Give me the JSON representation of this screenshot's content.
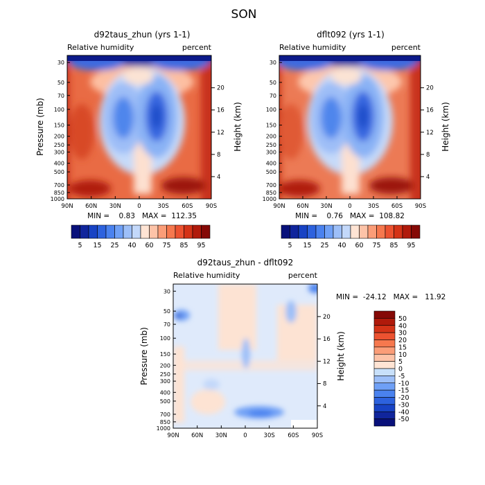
{
  "figure": {
    "title": "SON"
  },
  "chart_data": [
    {
      "type": "heatmap",
      "title": "d92taus_zhun (yrs 1-1)",
      "left_label": "Relative humidity",
      "right_label": "percent",
      "ylabel": "Pressure (mb)",
      "y2label": "Height (km)",
      "x_ticks": [
        "90N",
        "60N",
        "30N",
        "0",
        "30S",
        "60S",
        "90S"
      ],
      "y_ticks": [
        "30",
        "50",
        "70",
        "100",
        "150",
        "200",
        "250",
        "300",
        "400",
        "500",
        "700",
        "850",
        "1000"
      ],
      "y2_ticks": [
        "20",
        "16",
        "12",
        "8",
        "4"
      ],
      "stats": "MIN =    0.83   MAX =  112.35",
      "colorbar": {
        "labels": [
          "5",
          "15",
          "25",
          "40",
          "60",
          "75",
          "85",
          "95"
        ],
        "colors": [
          "#08107a",
          "#10259c",
          "#1843c4",
          "#2d62de",
          "#4a82ef",
          "#6fa0f6",
          "#9dbff8",
          "#c3d8fa",
          "#ffe4d4",
          "#fdc3a8",
          "#fb9d78",
          "#f6784e",
          "#ec5230",
          "#d43317",
          "#b01a0b",
          "#850906"
        ]
      }
    },
    {
      "type": "heatmap",
      "title": "dflt092 (yrs 1-1)",
      "left_label": "Relative humidity",
      "right_label": "percent",
      "ylabel": "Pressure (mb)",
      "y2label": "Height (km)",
      "x_ticks": [
        "90N",
        "60N",
        "30N",
        "0",
        "30S",
        "60S",
        "90S"
      ],
      "y_ticks": [
        "30",
        "50",
        "70",
        "100",
        "150",
        "200",
        "250",
        "300",
        "400",
        "500",
        "700",
        "850",
        "1000"
      ],
      "y2_ticks": [
        "20",
        "16",
        "12",
        "8",
        "4"
      ],
      "stats": "MIN =    0.76   MAX =  108.82",
      "colorbar": {
        "labels": [
          "5",
          "15",
          "25",
          "40",
          "60",
          "75",
          "85",
          "95"
        ],
        "colors": [
          "#08107a",
          "#10259c",
          "#1843c4",
          "#2d62de",
          "#4a82ef",
          "#6fa0f6",
          "#9dbff8",
          "#c3d8fa",
          "#ffe4d4",
          "#fdc3a8",
          "#fb9d78",
          "#f6784e",
          "#ec5230",
          "#d43317",
          "#b01a0b",
          "#850906"
        ]
      }
    },
    {
      "type": "heatmap",
      "title": "d92taus_zhun - dflt092",
      "left_label": "Relative humidity",
      "right_label": "percent",
      "ylabel": "Pressure (mb)",
      "y2label": "Height (km)",
      "x_ticks": [
        "90N",
        "60N",
        "30N",
        "0",
        "30S",
        "60S",
        "90S"
      ],
      "y_ticks": [
        "30",
        "50",
        "70",
        "100",
        "150",
        "200",
        "250",
        "300",
        "400",
        "500",
        "700",
        "850",
        "1000"
      ],
      "y2_ticks": [
        "20",
        "16",
        "12",
        "8",
        "4"
      ],
      "stats": "MIN =  -24.12   MAX =   11.92",
      "colorbar": {
        "labels": [
          "50",
          "40",
          "30",
          "20",
          "15",
          "10",
          "5",
          "0",
          "-5",
          "-10",
          "-15",
          "-20",
          "-30",
          "-40",
          "-50"
        ],
        "colors": [
          "#850906",
          "#b01a0b",
          "#d43317",
          "#ec5230",
          "#f6784e",
          "#fb9d78",
          "#fdc3a8",
          "#ffe4d4",
          "#c8e0fa",
          "#9dbff8",
          "#6fa0f6",
          "#4a82ef",
          "#2d62de",
          "#1843c4",
          "#10259c",
          "#08107a"
        ]
      }
    }
  ]
}
